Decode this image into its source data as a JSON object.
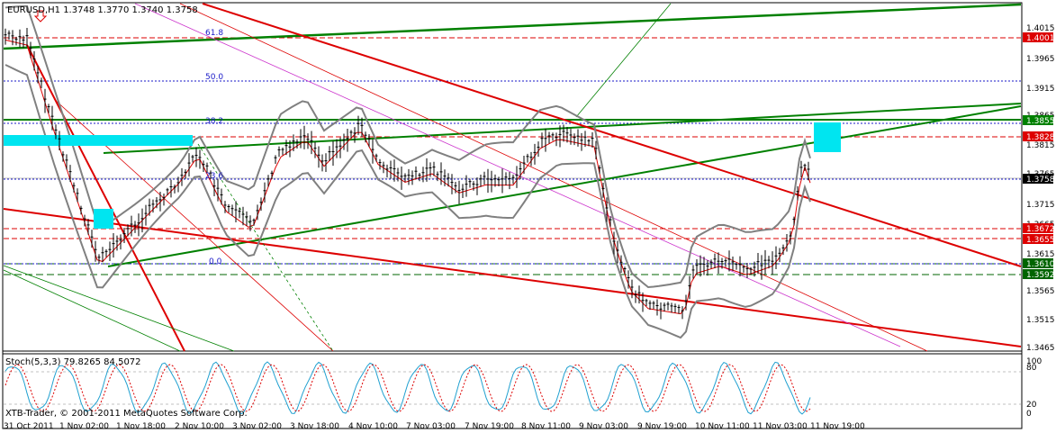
{
  "window": {
    "header": "EURUSD,H1  1.3748 1.3770 1.3740 1.3758",
    "copyright": "XTB-Trader, © 2001-2011 MetaQuotes Software Corp.",
    "stoch_header": "Stoch(5,3,3) 79.8265 84.5072"
  },
  "price_axis": {
    "ticks": [
      "1.4015",
      "1.3965",
      "1.3915",
      "1.3865",
      "1.3815",
      "1.3765",
      "1.3715",
      "1.3665",
      "1.3615",
      "1.3565",
      "1.3515",
      "1.3465"
    ],
    "badges": [
      {
        "label": "1.4001",
        "color": "#dd0000"
      },
      {
        "label": "1.3855",
        "color": "#008000"
      },
      {
        "label": "1.3828",
        "color": "#dd0000"
      },
      {
        "label": "1.3758",
        "color": "#000000"
      },
      {
        "label": "1.3672",
        "color": "#dd0000"
      },
      {
        "label": "1.3655",
        "color": "#dd0000"
      },
      {
        "label": "1.3610",
        "color": "#006400"
      },
      {
        "label": "1.3592",
        "color": "#006400"
      }
    ]
  },
  "fib_labels": [
    "61.8",
    "50.0",
    "38.2",
    "23.6",
    "0.0"
  ],
  "stoch_axis": [
    "100",
    "80",
    "20",
    "0"
  ],
  "time_axis": [
    "31 Oct 2011",
    "1 Nov 02:00",
    "1 Nov 18:00",
    "2 Nov 10:00",
    "3 Nov 02:00",
    "3 Nov 18:00",
    "4 Nov 10:00",
    "7 Nov 03:00",
    "7 Nov 19:00",
    "8 Nov 11:00",
    "9 Nov 03:00",
    "9 Nov 19:00",
    "10 Nov 11:00",
    "11 Nov 03:00",
    "11 Nov 19:00"
  ],
  "colors": {
    "bg": "#ffffff",
    "candle": "#000000",
    "support_resistance": "#dd0000",
    "channel": "#008000",
    "bands": "#808080",
    "zones": "#00e5f0",
    "stoch_main": "#20a0d0",
    "stoch_signal": "#dd0000"
  }
}
